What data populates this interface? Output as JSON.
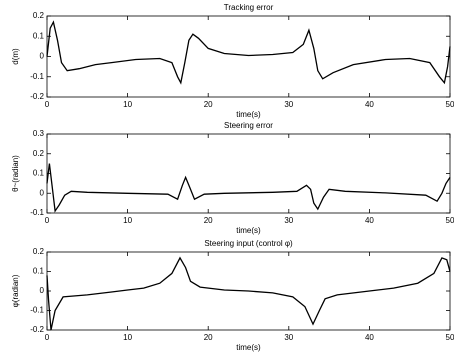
{
  "chart_data": [
    {
      "type": "line",
      "title": "Tracking error",
      "xlabel": "time(s)",
      "ylabel": "d(m)",
      "color": "#000000",
      "x": [
        0,
        0.4,
        0.8,
        1.3,
        1.8,
        2.5,
        4,
        6,
        8,
        11,
        14,
        15.5,
        16.2,
        16.6,
        17.1,
        17.6,
        18.1,
        18.8,
        20,
        22,
        25,
        28,
        30.5,
        31.8,
        32.5,
        33.1,
        33.6,
        34.2,
        35.5,
        38,
        42,
        45,
        47.5,
        48.7,
        49.3,
        49.7,
        50
      ],
      "values": [
        0,
        0.14,
        0.17,
        0.08,
        -0.03,
        -0.07,
        -0.06,
        -0.04,
        -0.03,
        -0.015,
        -0.01,
        -0.03,
        -0.1,
        -0.13,
        -0.03,
        0.08,
        0.11,
        0.09,
        0.04,
        0.015,
        0.005,
        0.01,
        0.02,
        0.06,
        0.13,
        0.04,
        -0.07,
        -0.11,
        -0.08,
        -0.04,
        -0.015,
        -0.01,
        -0.03,
        -0.1,
        -0.13,
        -0.05,
        0.05
      ],
      "xlim": [
        0,
        50
      ],
      "ylim": [
        -0.2,
        0.2
      ],
      "xticks": [
        0,
        10,
        20,
        30,
        40,
        50
      ],
      "yticks": [
        -0.2,
        -0.1,
        0,
        0.1,
        0.2
      ]
    },
    {
      "type": "line",
      "title": "Steering error",
      "xlabel": "time(s)",
      "ylabel": "θ~(radian)",
      "color": "#000000",
      "x": [
        0,
        0.3,
        0.6,
        1,
        1.5,
        2.2,
        3,
        5,
        10,
        15,
        16.2,
        16.8,
        17.2,
        17.7,
        18.3,
        19.5,
        22,
        28,
        31,
        32.2,
        32.7,
        33.1,
        33.6,
        34.3,
        35,
        37,
        42,
        47,
        48.4,
        49,
        49.5,
        50
      ],
      "values": [
        0.05,
        0.15,
        0.05,
        -0.09,
        -0.06,
        -0.01,
        0.01,
        0.005,
        0,
        -0.005,
        -0.03,
        0.04,
        0.08,
        0.03,
        -0.03,
        -0.005,
        0,
        0.005,
        0.01,
        0.04,
        0.02,
        -0.05,
        -0.08,
        -0.02,
        0.02,
        0.01,
        0.002,
        -0.01,
        -0.04,
        0,
        0.05,
        0.08
      ],
      "xlim": [
        0,
        50
      ],
      "ylim": [
        -0.1,
        0.3
      ],
      "xticks": [
        0,
        10,
        20,
        30,
        40,
        50
      ],
      "yticks": [
        -0.1,
        0,
        0.1,
        0.2,
        0.3
      ]
    },
    {
      "type": "line",
      "title": "Steering input (control φ)",
      "xlabel": "time(s)",
      "ylabel": "φ(radian)",
      "color": "#000000",
      "x": [
        0,
        0.2,
        0.5,
        1,
        2,
        5,
        8,
        10,
        12,
        14,
        15.5,
        16.5,
        17.2,
        17.8,
        19,
        22,
        25,
        28,
        30.5,
        32,
        33,
        33.8,
        34.5,
        36,
        40,
        43,
        46,
        48,
        49,
        49.6,
        50
      ],
      "values": [
        0.08,
        -0.05,
        -0.2,
        -0.1,
        -0.03,
        -0.02,
        -0.005,
        0.005,
        0.015,
        0.04,
        0.09,
        0.17,
        0.12,
        0.05,
        0.02,
        0.005,
        0,
        -0.01,
        -0.03,
        -0.08,
        -0.17,
        -0.1,
        -0.04,
        -0.02,
        0,
        0.015,
        0.04,
        0.09,
        0.17,
        0.16,
        0.1
      ],
      "xlim": [
        0,
        50
      ],
      "ylim": [
        -0.2,
        0.2
      ],
      "xticks": [
        0,
        10,
        20,
        30,
        40,
        50
      ],
      "yticks": [
        -0.2,
        -0.1,
        0,
        0.1,
        0.2
      ]
    }
  ]
}
